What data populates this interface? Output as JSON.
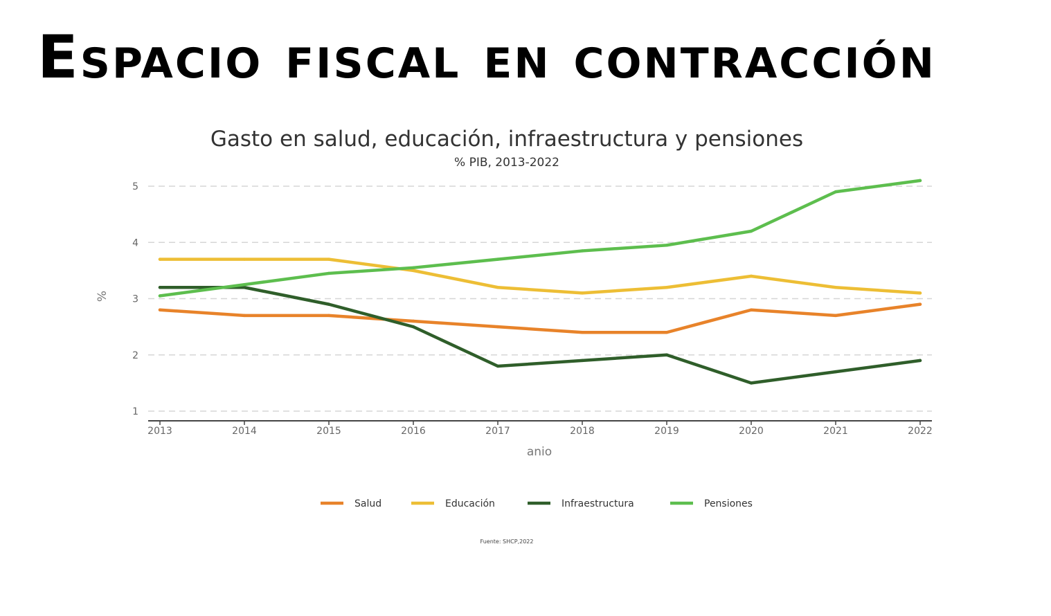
{
  "slide": {
    "title": "Espacio fiscal en contracción"
  },
  "chart_data": {
    "type": "line",
    "title": "Gasto en salud, educación, infraestructura y pensiones",
    "subtitle": "% PIB, 2013-2022",
    "xlabel": "anio",
    "ylabel": "%",
    "x": [
      "2013",
      "2014",
      "2015",
      "2016",
      "2017",
      "2018",
      "2019",
      "2020",
      "2021",
      "2022"
    ],
    "yticks": [
      "1",
      "2",
      "3",
      "4",
      "5"
    ],
    "ylim": [
      1,
      5.2
    ],
    "grid": true,
    "legend_position": "bottom",
    "series": [
      {
        "name": "Salud",
        "color": "#E8832A",
        "values": [
          2.8,
          2.7,
          2.7,
          2.6,
          2.5,
          2.4,
          2.4,
          2.8,
          2.7,
          2.9
        ]
      },
      {
        "name": "Educación",
        "color": "#EDBE35",
        "values": [
          3.7,
          3.7,
          3.7,
          3.5,
          3.2,
          3.1,
          3.2,
          3.4,
          3.2,
          3.1
        ]
      },
      {
        "name": "Infraestructura",
        "color": "#2F5E2A",
        "values": [
          3.2,
          3.2,
          2.9,
          2.5,
          1.8,
          1.9,
          2.0,
          1.5,
          1.7,
          1.9
        ]
      },
      {
        "name": "Pensiones",
        "color": "#5DBE4E",
        "values": [
          3.05,
          3.25,
          3.45,
          3.55,
          3.7,
          3.85,
          3.95,
          4.2,
          4.9,
          5.1
        ]
      }
    ],
    "source": "Fuente: SHCP,2022"
  }
}
